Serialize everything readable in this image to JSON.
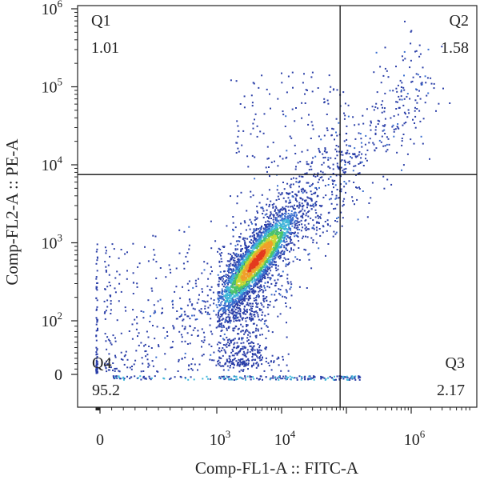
{
  "chart_data": {
    "type": "scatter",
    "subtype": "flow-cytometry-density-dot-plot",
    "title": "",
    "xlabel": "Comp-FL1-A :: FITC-A",
    "ylabel": "Comp-FL2-A :: PE-A",
    "x_scale": "biexponential",
    "y_scale": "biexponential",
    "xlim": [
      -600,
      8000000
    ],
    "ylim": [
      -40,
      1000000
    ],
    "x_ticks": [
      {
        "value": 0,
        "base": "0",
        "exp": ""
      },
      {
        "value": 1000,
        "base": "10",
        "exp": "3"
      },
      {
        "value": 10000,
        "base": "10",
        "exp": "4"
      },
      {
        "value": 1000000,
        "base": "10",
        "exp": "6"
      }
    ],
    "y_ticks": [
      {
        "value": 0,
        "base": "0",
        "exp": ""
      },
      {
        "value": 100,
        "base": "10",
        "exp": "2"
      },
      {
        "value": 1000,
        "base": "10",
        "exp": "3"
      },
      {
        "value": 10000,
        "base": "10",
        "exp": "4"
      },
      {
        "value": 100000,
        "base": "10",
        "exp": "5"
      },
      {
        "value": 1000000,
        "base": "10",
        "exp": "6"
      }
    ],
    "gate": {
      "x": 80000,
      "y": 7500
    },
    "quadrants": [
      {
        "name": "Q1",
        "value": "1.01",
        "position": "top-left"
      },
      {
        "name": "Q2",
        "value": "1.58",
        "position": "top-right"
      },
      {
        "name": "Q3",
        "value": "2.17",
        "position": "bottom-right"
      },
      {
        "name": "Q4",
        "value": "95.2",
        "position": "bottom-left"
      }
    ],
    "population_center": {
      "x": 4000,
      "y": 600
    },
    "density_colors": [
      "#2b3fa8",
      "#3a6fd0",
      "#3fb7d9",
      "#4cc46a",
      "#c8d834",
      "#f0a02a",
      "#e43a1e"
    ],
    "grid": false,
    "legend": "none"
  }
}
